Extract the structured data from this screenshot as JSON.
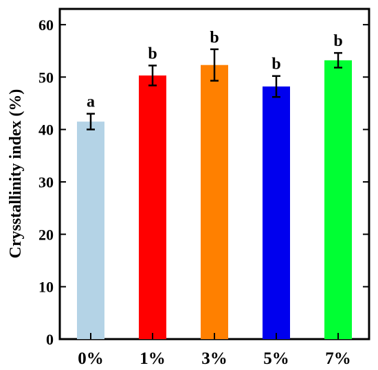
{
  "chart_data": {
    "type": "bar",
    "title": "",
    "xlabel": "",
    "ylabel": "Crysstallinity index (%)",
    "ylim": [
      0,
      63
    ],
    "yticks": [
      0,
      10,
      20,
      30,
      40,
      50,
      60
    ],
    "categories": [
      "0%",
      "1%",
      "3%",
      "5%",
      "7%"
    ],
    "values": [
      41.5,
      50.3,
      52.3,
      48.2,
      53.2
    ],
    "errors": [
      1.5,
      1.9,
      3.0,
      2.0,
      1.4
    ],
    "significance": [
      "a",
      "b",
      "b",
      "b",
      "b"
    ],
    "colors": [
      "#b4d3e6",
      "#ff0000",
      "#ff8000",
      "#0000ee",
      "#00ff33"
    ],
    "grid": false,
    "legend": "none"
  }
}
